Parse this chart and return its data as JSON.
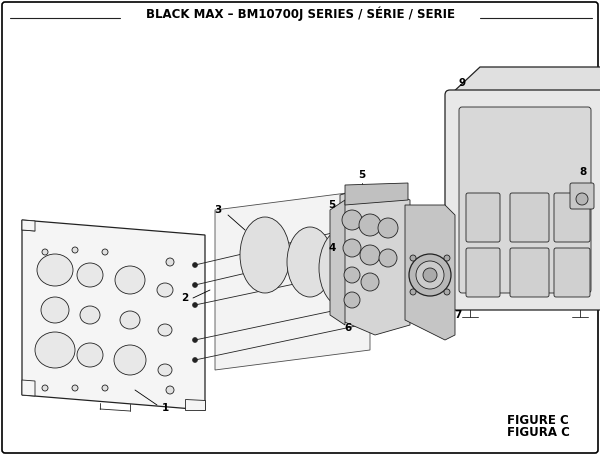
{
  "title": "BLACK MAX – BM10700J SERIES / SÉRIE / SERIE",
  "figure_label": "FIGURE C",
  "figura_label": "FIGURA C",
  "bg_color": "#ffffff",
  "line_color": "#222222",
  "title_fontsize": 8.5,
  "label_fontsize": 7.5,
  "figure_fontsize": 8.5
}
